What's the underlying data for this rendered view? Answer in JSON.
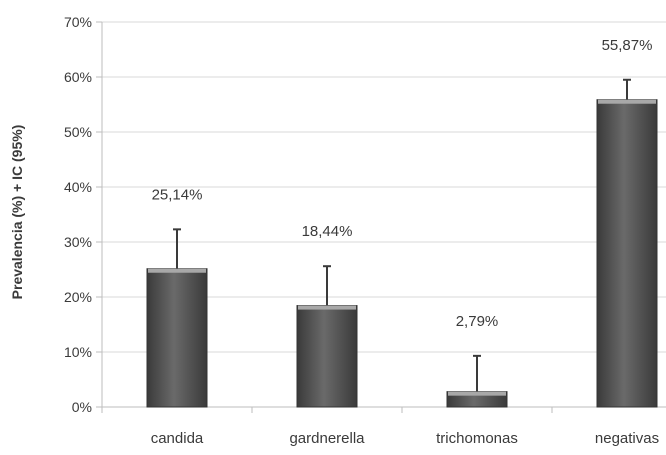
{
  "chart_data": {
    "type": "bar",
    "categories": [
      "candida",
      "gardnerella",
      "trichomonas",
      "negativas"
    ],
    "series": [
      {
        "values": [
          25.14,
          18.44,
          2.79,
          55.87
        ],
        "ci_upper": [
          32.3,
          25.6,
          9.3,
          59.5
        ]
      }
    ],
    "data_labels": [
      "25,14%",
      "18,44%",
      "2,79%",
      "55,87%"
    ],
    "title": "",
    "xlabel": "",
    "ylabel": "Prevalencia (%) + IC (95%)",
    "ylim": [
      0,
      70
    ],
    "yticks": [
      0,
      10,
      20,
      30,
      40,
      50,
      60,
      70
    ],
    "ytick_labels": [
      "0%",
      "10%",
      "20%",
      "30%",
      "40%",
      "50%",
      "60%",
      "70%"
    ],
    "grid": true,
    "legend": "none"
  },
  "colors": {
    "bar_dark": "#3f3f3f",
    "bar_mid": "#777777",
    "bar_top": "#a8a8a8",
    "gridline": "#d9d9d9",
    "axis": "#bdbdbd",
    "error_bar": "#3a3a3a",
    "text": "#3a3a3a"
  }
}
